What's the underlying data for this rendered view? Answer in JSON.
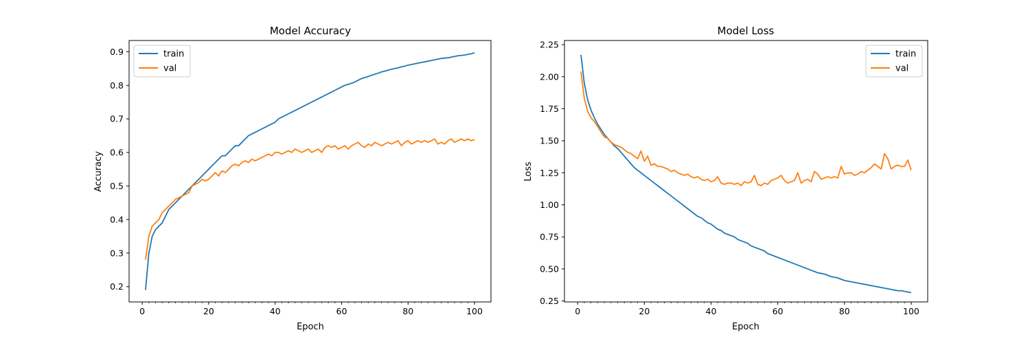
{
  "colors": {
    "train": "#1f77b4",
    "val": "#ff7f0e"
  },
  "chart_data": [
    {
      "type": "line",
      "title": "Model Accuracy",
      "xlabel": "Epoch",
      "ylabel": "Accuracy",
      "xlim": [
        -3.95,
        104.95
      ],
      "ylim": [
        0.1545,
        0.9335
      ],
      "xticks": [
        0,
        20,
        40,
        60,
        80,
        100
      ],
      "xtick_labels": [
        "0",
        "20",
        "40",
        "60",
        "80",
        "100"
      ],
      "yticks": [
        0.2,
        0.3,
        0.4,
        0.5,
        0.6,
        0.7,
        0.8,
        0.9
      ],
      "ytick_labels": [
        "0.2",
        "0.3",
        "0.4",
        "0.5",
        "0.6",
        "0.7",
        "0.8",
        "0.9"
      ],
      "legend": "upper left",
      "x": [
        1,
        2,
        3,
        4,
        5,
        6,
        7,
        8,
        9,
        10,
        11,
        12,
        13,
        14,
        15,
        16,
        17,
        18,
        19,
        20,
        21,
        22,
        23,
        24,
        25,
        26,
        27,
        28,
        29,
        30,
        31,
        32,
        33,
        34,
        35,
        36,
        37,
        38,
        39,
        40,
        41,
        42,
        43,
        44,
        45,
        46,
        47,
        48,
        49,
        50,
        51,
        52,
        53,
        54,
        55,
        56,
        57,
        58,
        59,
        60,
        61,
        62,
        63,
        64,
        65,
        66,
        67,
        68,
        69,
        70,
        71,
        72,
        73,
        74,
        75,
        76,
        77,
        78,
        79,
        80,
        81,
        82,
        83,
        84,
        85,
        86,
        87,
        88,
        89,
        90,
        91,
        92,
        93,
        94,
        95,
        96,
        97,
        98,
        99,
        100
      ],
      "series": [
        {
          "name": "train",
          "values": [
            0.19,
            0.3,
            0.35,
            0.37,
            0.38,
            0.39,
            0.41,
            0.43,
            0.44,
            0.45,
            0.46,
            0.47,
            0.48,
            0.49,
            0.5,
            0.51,
            0.52,
            0.53,
            0.54,
            0.55,
            0.56,
            0.57,
            0.58,
            0.59,
            0.59,
            0.6,
            0.61,
            0.62,
            0.62,
            0.63,
            0.64,
            0.65,
            0.655,
            0.66,
            0.665,
            0.67,
            0.675,
            0.68,
            0.685,
            0.69,
            0.7,
            0.705,
            0.71,
            0.715,
            0.72,
            0.725,
            0.73,
            0.735,
            0.74,
            0.745,
            0.75,
            0.755,
            0.76,
            0.765,
            0.77,
            0.775,
            0.78,
            0.785,
            0.79,
            0.795,
            0.8,
            0.803,
            0.806,
            0.81,
            0.815,
            0.82,
            0.823,
            0.826,
            0.83,
            0.833,
            0.836,
            0.84,
            0.842,
            0.845,
            0.848,
            0.85,
            0.852,
            0.855,
            0.857,
            0.86,
            0.862,
            0.864,
            0.866,
            0.868,
            0.87,
            0.872,
            0.874,
            0.876,
            0.878,
            0.88,
            0.881,
            0.882,
            0.884,
            0.886,
            0.888,
            0.889,
            0.89,
            0.892,
            0.894,
            0.897
          ]
        },
        {
          "name": "val",
          "values": [
            0.28,
            0.35,
            0.38,
            0.39,
            0.4,
            0.42,
            0.43,
            0.44,
            0.45,
            0.46,
            0.465,
            0.47,
            0.475,
            0.48,
            0.5,
            0.505,
            0.51,
            0.52,
            0.515,
            0.52,
            0.53,
            0.54,
            0.53,
            0.545,
            0.54,
            0.55,
            0.56,
            0.565,
            0.56,
            0.57,
            0.575,
            0.57,
            0.58,
            0.575,
            0.58,
            0.585,
            0.59,
            0.595,
            0.59,
            0.6,
            0.6,
            0.595,
            0.6,
            0.605,
            0.6,
            0.61,
            0.605,
            0.6,
            0.605,
            0.61,
            0.6,
            0.605,
            0.61,
            0.6,
            0.615,
            0.62,
            0.615,
            0.62,
            0.61,
            0.615,
            0.62,
            0.61,
            0.62,
            0.625,
            0.63,
            0.62,
            0.615,
            0.625,
            0.62,
            0.63,
            0.625,
            0.62,
            0.625,
            0.63,
            0.625,
            0.63,
            0.635,
            0.62,
            0.63,
            0.635,
            0.625,
            0.63,
            0.635,
            0.63,
            0.635,
            0.63,
            0.635,
            0.64,
            0.625,
            0.63,
            0.625,
            0.635,
            0.64,
            0.63,
            0.635,
            0.64,
            0.635,
            0.64,
            0.635,
            0.638
          ]
        }
      ]
    },
    {
      "type": "line",
      "title": "Model Loss",
      "xlabel": "Epoch",
      "ylabel": "Loss",
      "xlim": [
        -3.95,
        104.95
      ],
      "ylim": [
        0.2425,
        2.2825
      ],
      "xticks": [
        0,
        20,
        40,
        60,
        80,
        100
      ],
      "xtick_labels": [
        "0",
        "20",
        "40",
        "60",
        "80",
        "100"
      ],
      "yticks": [
        0.25,
        0.5,
        0.75,
        1.0,
        1.25,
        1.5,
        1.75,
        2.0,
        2.25
      ],
      "ytick_labels": [
        "0.25",
        "0.50",
        "0.75",
        "1.00",
        "1.25",
        "1.50",
        "1.75",
        "2.00",
        "2.25"
      ],
      "legend": "upper right",
      "x": [
        1,
        2,
        3,
        4,
        5,
        6,
        7,
        8,
        9,
        10,
        11,
        12,
        13,
        14,
        15,
        16,
        17,
        18,
        19,
        20,
        21,
        22,
        23,
        24,
        25,
        26,
        27,
        28,
        29,
        30,
        31,
        32,
        33,
        34,
        35,
        36,
        37,
        38,
        39,
        40,
        41,
        42,
        43,
        44,
        45,
        46,
        47,
        48,
        49,
        50,
        51,
        52,
        53,
        54,
        55,
        56,
        57,
        58,
        59,
        60,
        61,
        62,
        63,
        64,
        65,
        66,
        67,
        68,
        69,
        70,
        71,
        72,
        73,
        74,
        75,
        76,
        77,
        78,
        79,
        80,
        81,
        82,
        83,
        84,
        85,
        86,
        87,
        88,
        89,
        90,
        91,
        92,
        93,
        94,
        95,
        96,
        97,
        98,
        99,
        100
      ],
      "series": [
        {
          "name": "train",
          "values": [
            2.17,
            1.95,
            1.82,
            1.74,
            1.68,
            1.63,
            1.59,
            1.55,
            1.52,
            1.49,
            1.46,
            1.44,
            1.41,
            1.38,
            1.35,
            1.32,
            1.29,
            1.27,
            1.25,
            1.23,
            1.21,
            1.19,
            1.17,
            1.15,
            1.13,
            1.11,
            1.09,
            1.07,
            1.05,
            1.03,
            1.01,
            0.99,
            0.97,
            0.95,
            0.93,
            0.91,
            0.9,
            0.88,
            0.86,
            0.85,
            0.83,
            0.81,
            0.8,
            0.78,
            0.77,
            0.76,
            0.75,
            0.73,
            0.72,
            0.71,
            0.7,
            0.68,
            0.67,
            0.66,
            0.65,
            0.64,
            0.62,
            0.61,
            0.6,
            0.59,
            0.58,
            0.57,
            0.56,
            0.55,
            0.54,
            0.53,
            0.52,
            0.51,
            0.5,
            0.49,
            0.48,
            0.47,
            0.465,
            0.46,
            0.45,
            0.44,
            0.435,
            0.43,
            0.42,
            0.41,
            0.405,
            0.4,
            0.395,
            0.39,
            0.385,
            0.38,
            0.375,
            0.37,
            0.365,
            0.36,
            0.355,
            0.35,
            0.345,
            0.34,
            0.335,
            0.33,
            0.33,
            0.325,
            0.32,
            0.315
          ]
        },
        {
          "name": "val",
          "values": [
            2.04,
            1.83,
            1.73,
            1.68,
            1.65,
            1.61,
            1.57,
            1.53,
            1.52,
            1.49,
            1.47,
            1.46,
            1.45,
            1.43,
            1.41,
            1.4,
            1.38,
            1.36,
            1.42,
            1.34,
            1.38,
            1.31,
            1.32,
            1.3,
            1.3,
            1.29,
            1.28,
            1.26,
            1.27,
            1.25,
            1.24,
            1.23,
            1.24,
            1.22,
            1.21,
            1.22,
            1.2,
            1.19,
            1.2,
            1.18,
            1.19,
            1.22,
            1.17,
            1.16,
            1.17,
            1.17,
            1.16,
            1.17,
            1.15,
            1.18,
            1.17,
            1.18,
            1.23,
            1.16,
            1.15,
            1.17,
            1.16,
            1.19,
            1.2,
            1.21,
            1.23,
            1.19,
            1.17,
            1.18,
            1.19,
            1.25,
            1.17,
            1.19,
            1.2,
            1.18,
            1.26,
            1.24,
            1.2,
            1.21,
            1.22,
            1.21,
            1.22,
            1.21,
            1.3,
            1.24,
            1.25,
            1.25,
            1.23,
            1.24,
            1.26,
            1.25,
            1.27,
            1.29,
            1.32,
            1.3,
            1.28,
            1.4,
            1.36,
            1.28,
            1.3,
            1.31,
            1.3,
            1.3,
            1.35,
            1.27
          ]
        }
      ]
    }
  ]
}
